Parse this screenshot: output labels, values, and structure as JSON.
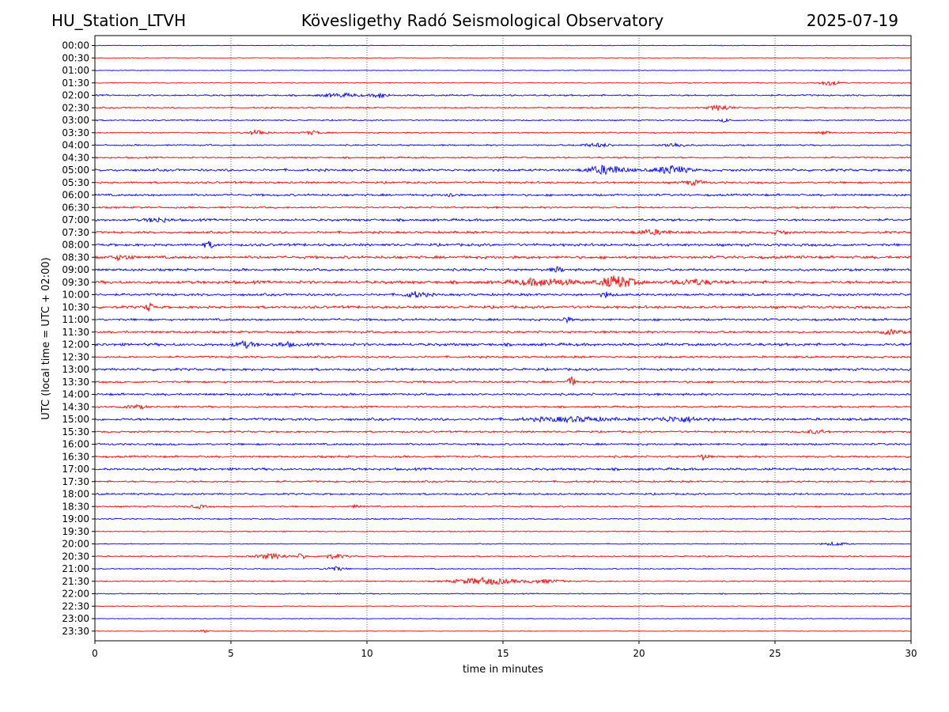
{
  "header": {
    "station": "HU_Station_LTVH",
    "title": "Kövesligethy Radó Seismological Observatory",
    "date": "2025-07-19"
  },
  "chart_data": {
    "type": "line",
    "title": "Kövesligethy Radó Seismological Observatory",
    "xlabel": "time in minutes",
    "ylabel": "UTC (local time = UTC + 02:00)",
    "xlim": [
      0,
      30
    ],
    "xticks": [
      0,
      5,
      10,
      15,
      20,
      25,
      30
    ],
    "vertical_gridlines": [
      5,
      10,
      15,
      20,
      25
    ],
    "colors": {
      "even_rows": "#0000ff",
      "odd_rows": "#ff0000"
    },
    "rows": [
      {
        "label": "00:00",
        "noise": 0.4,
        "events": []
      },
      {
        "label": "00:30",
        "noise": 0.4,
        "events": []
      },
      {
        "label": "01:00",
        "noise": 0.4,
        "events": []
      },
      {
        "label": "01:30",
        "noise": 0.5,
        "events": [
          {
            "t": 27.0,
            "amp": 3,
            "dur": 0.5
          }
        ]
      },
      {
        "label": "02:00",
        "noise": 0.9,
        "events": [
          {
            "t": 9.0,
            "amp": 2,
            "dur": 1.0
          },
          {
            "t": 10.5,
            "amp": 3,
            "dur": 0.4
          }
        ]
      },
      {
        "label": "02:30",
        "noise": 0.8,
        "events": [
          {
            "t": 23.0,
            "amp": 3,
            "dur": 0.6
          }
        ]
      },
      {
        "label": "03:00",
        "noise": 0.7,
        "events": [
          {
            "t": 23.2,
            "amp": 2,
            "dur": 0.3
          }
        ]
      },
      {
        "label": "03:30",
        "noise": 0.7,
        "events": [
          {
            "t": 6.0,
            "amp": 3,
            "dur": 0.5
          },
          {
            "t": 8.0,
            "amp": 2,
            "dur": 0.5
          },
          {
            "t": 26.8,
            "amp": 2,
            "dur": 0.3
          }
        ]
      },
      {
        "label": "04:00",
        "noise": 0.8,
        "events": [
          {
            "t": 18.5,
            "amp": 2,
            "dur": 0.8
          },
          {
            "t": 21.3,
            "amp": 2.5,
            "dur": 0.6
          }
        ]
      },
      {
        "label": "04:30",
        "noise": 0.9,
        "events": []
      },
      {
        "label": "05:00",
        "noise": 1.3,
        "events": [
          {
            "t": 18.8,
            "amp": 5,
            "dur": 1.0
          },
          {
            "t": 21.2,
            "amp": 5,
            "dur": 0.8
          }
        ]
      },
      {
        "label": "05:30",
        "noise": 1.1,
        "events": [
          {
            "t": 22.0,
            "amp": 2.5,
            "dur": 0.6
          }
        ]
      },
      {
        "label": "06:00",
        "noise": 1.2,
        "events": [
          {
            "t": 13.1,
            "amp": 3,
            "dur": 0.2
          }
        ]
      },
      {
        "label": "06:30",
        "noise": 1.0,
        "events": []
      },
      {
        "label": "07:00",
        "noise": 1.3,
        "events": [
          {
            "t": 2.3,
            "amp": 2.5,
            "dur": 0.6
          }
        ]
      },
      {
        "label": "07:30",
        "noise": 1.2,
        "events": [
          {
            "t": 20.5,
            "amp": 2.5,
            "dur": 1.0
          },
          {
            "t": 25.2,
            "amp": 2,
            "dur": 0.4
          }
        ]
      },
      {
        "label": "08:00",
        "noise": 1.4,
        "events": [
          {
            "t": 4.2,
            "amp": 3.5,
            "dur": 0.3
          }
        ]
      },
      {
        "label": "08:30",
        "noise": 1.5,
        "events": [
          {
            "t": 1.0,
            "amp": 2.5,
            "dur": 0.6
          }
        ]
      },
      {
        "label": "09:00",
        "noise": 1.3,
        "events": [
          {
            "t": 17.0,
            "amp": 3,
            "dur": 0.3
          }
        ]
      },
      {
        "label": "09:30",
        "noise": 1.6,
        "events": [
          {
            "t": 16.5,
            "amp": 4,
            "dur": 1.5
          },
          {
            "t": 19.2,
            "amp": 7,
            "dur": 0.9
          },
          {
            "t": 22.0,
            "amp": 3,
            "dur": 1.0
          }
        ]
      },
      {
        "label": "10:00",
        "noise": 1.3,
        "events": [
          {
            "t": 11.8,
            "amp": 3,
            "dur": 0.6
          },
          {
            "t": 18.8,
            "amp": 3,
            "dur": 0.3
          }
        ]
      },
      {
        "label": "10:30",
        "noise": 1.4,
        "events": [
          {
            "t": 2.0,
            "amp": 5,
            "dur": 0.2
          }
        ]
      },
      {
        "label": "11:00",
        "noise": 1.2,
        "events": [
          {
            "t": 17.3,
            "amp": 3,
            "dur": 0.3
          }
        ]
      },
      {
        "label": "11:30",
        "noise": 1.2,
        "events": [
          {
            "t": 29.3,
            "amp": 2.5,
            "dur": 0.5
          }
        ]
      },
      {
        "label": "12:00",
        "noise": 1.5,
        "events": [
          {
            "t": 5.5,
            "amp": 3.5,
            "dur": 0.5
          },
          {
            "t": 7.0,
            "amp": 2,
            "dur": 0.5
          }
        ]
      },
      {
        "label": "12:30",
        "noise": 1.1,
        "events": []
      },
      {
        "label": "13:00",
        "noise": 1.3,
        "events": []
      },
      {
        "label": "13:30",
        "noise": 1.1,
        "events": [
          {
            "t": 17.5,
            "amp": 6,
            "dur": 0.2
          }
        ]
      },
      {
        "label": "14:00",
        "noise": 1.2,
        "events": []
      },
      {
        "label": "14:30",
        "noise": 1.0,
        "events": [
          {
            "t": 1.5,
            "amp": 2,
            "dur": 0.5
          }
        ]
      },
      {
        "label": "15:00",
        "noise": 1.4,
        "events": [
          {
            "t": 17.5,
            "amp": 2.5,
            "dur": 2.0
          },
          {
            "t": 21.5,
            "amp": 3,
            "dur": 1.2
          }
        ]
      },
      {
        "label": "15:30",
        "noise": 1.0,
        "events": [
          {
            "t": 26.5,
            "amp": 2,
            "dur": 0.6
          }
        ]
      },
      {
        "label": "16:00",
        "noise": 1.1,
        "events": []
      },
      {
        "label": "16:30",
        "noise": 1.1,
        "events": [
          {
            "t": 22.4,
            "amp": 4,
            "dur": 0.2
          }
        ]
      },
      {
        "label": "17:00",
        "noise": 1.3,
        "events": []
      },
      {
        "label": "17:30",
        "noise": 1.0,
        "events": []
      },
      {
        "label": "18:00",
        "noise": 1.0,
        "events": []
      },
      {
        "label": "18:30",
        "noise": 0.8,
        "events": [
          {
            "t": 3.8,
            "amp": 2,
            "dur": 0.4
          },
          {
            "t": 9.6,
            "amp": 2,
            "dur": 0.2
          }
        ]
      },
      {
        "label": "19:00",
        "noise": 0.7,
        "events": []
      },
      {
        "label": "19:30",
        "noise": 0.6,
        "events": []
      },
      {
        "label": "20:00",
        "noise": 0.5,
        "events": [
          {
            "t": 27.2,
            "amp": 2,
            "dur": 0.6
          }
        ]
      },
      {
        "label": "20:30",
        "noise": 0.7,
        "events": [
          {
            "t": 6.5,
            "amp": 3,
            "dur": 0.8
          },
          {
            "t": 7.6,
            "amp": 4,
            "dur": 0.2
          },
          {
            "t": 8.8,
            "amp": 2.5,
            "dur": 0.6
          }
        ]
      },
      {
        "label": "21:00",
        "noise": 0.6,
        "events": [
          {
            "t": 8.8,
            "amp": 2.5,
            "dur": 0.5
          }
        ]
      },
      {
        "label": "21:30",
        "noise": 0.7,
        "events": [
          {
            "t": 14.3,
            "amp": 4,
            "dur": 1.5
          },
          {
            "t": 16.5,
            "amp": 2,
            "dur": 1.0
          }
        ]
      },
      {
        "label": "22:00",
        "noise": 0.6,
        "events": []
      },
      {
        "label": "22:30",
        "noise": 0.5,
        "events": []
      },
      {
        "label": "23:00",
        "noise": 0.4,
        "events": []
      },
      {
        "label": "23:30",
        "noise": 0.4,
        "events": [
          {
            "t": 4.0,
            "amp": 1.5,
            "dur": 0.4
          }
        ]
      }
    ]
  }
}
